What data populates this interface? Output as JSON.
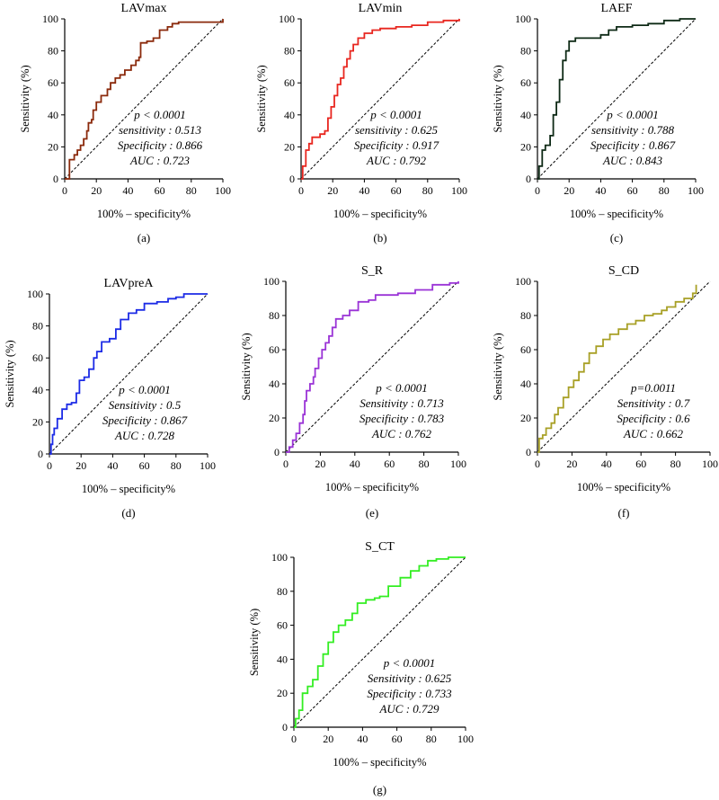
{
  "chart_data": [
    {
      "type": "line",
      "panel": "(a)",
      "title": "LAVmax",
      "xlabel": "100% – specificity%",
      "ylabel": "Sensitivity (%)",
      "xlim": [
        0,
        100
      ],
      "ylim": [
        0,
        100
      ],
      "xticks": [
        "0",
        "20",
        "40",
        "60",
        "80",
        "100"
      ],
      "yticks": [
        "0",
        "20",
        "40",
        "60",
        "80",
        "100"
      ],
      "color": "#8B2A0C",
      "annotations": [
        "p < 0.0001",
        "sensitivity : 0.513",
        "Specificity : 0.866",
        "AUC : 0.723"
      ],
      "reference_line": "dashed diagonal",
      "series": [
        {
          "points": [
            [
              0,
              0
            ],
            [
              3,
              0
            ],
            [
              3,
              12
            ],
            [
              6,
              15
            ],
            [
              8,
              18
            ],
            [
              10,
              21
            ],
            [
              12,
              25
            ],
            [
              14,
              30
            ],
            [
              15,
              35
            ],
            [
              17,
              37
            ],
            [
              18,
              43
            ],
            [
              20,
              48
            ],
            [
              23,
              52
            ],
            [
              27,
              56
            ],
            [
              29,
              60
            ],
            [
              32,
              63
            ],
            [
              35,
              65
            ],
            [
              38,
              68
            ],
            [
              42,
              71
            ],
            [
              45,
              74
            ],
            [
              47,
              76
            ],
            [
              48,
              85
            ],
            [
              52,
              86
            ],
            [
              56,
              88
            ],
            [
              60,
              93
            ],
            [
              65,
              95
            ],
            [
              68,
              97
            ],
            [
              72,
              98
            ],
            [
              100,
              100
            ]
          ]
        }
      ]
    },
    {
      "type": "line",
      "panel": "(b)",
      "title": "LAVmin",
      "xlabel": "100% – specificity%",
      "ylabel": "Sensitivity (%)",
      "xlim": [
        0,
        100
      ],
      "ylim": [
        0,
        100
      ],
      "xticks": [
        "0",
        "20",
        "40",
        "60",
        "80",
        "100"
      ],
      "yticks": [
        "0",
        "20",
        "40",
        "60",
        "80",
        "100"
      ],
      "color": "#E8261F",
      "annotations": [
        "p < 0.0001",
        "sensitivity : 0.625",
        "Specificity : 0.917",
        "AUC : 0.792"
      ],
      "reference_line": "dashed diagonal",
      "series": [
        {
          "points": [
            [
              0,
              0
            ],
            [
              1,
              8
            ],
            [
              3,
              18
            ],
            [
              5,
              22
            ],
            [
              7,
              26
            ],
            [
              12,
              28
            ],
            [
              15,
              30
            ],
            [
              17,
              38
            ],
            [
              19,
              45
            ],
            [
              21,
              52
            ],
            [
              23,
              59
            ],
            [
              25,
              63
            ],
            [
              27,
              70
            ],
            [
              29,
              75
            ],
            [
              31,
              80
            ],
            [
              33,
              84
            ],
            [
              36,
              88
            ],
            [
              40,
              91
            ],
            [
              45,
              93
            ],
            [
              50,
              94
            ],
            [
              60,
              95
            ],
            [
              70,
              96
            ],
            [
              80,
              98
            ],
            [
              90,
              99
            ],
            [
              100,
              100
            ]
          ]
        }
      ]
    },
    {
      "type": "line",
      "panel": "(c)",
      "title": "LAEF",
      "xlabel": "100% – specificity%",
      "ylabel": "Sensitivity (%)",
      "xlim": [
        0,
        100
      ],
      "ylim": [
        0,
        100
      ],
      "xticks": [
        "0",
        "20",
        "40",
        "60",
        "80",
        "100"
      ],
      "yticks": [
        "0",
        "20",
        "40",
        "60",
        "80",
        "100"
      ],
      "color": "#0E2A16",
      "annotations": [
        "p < 0.0001",
        "sensitivity : 0.788",
        "Specificity : 0.867",
        "AUC : 0.843"
      ],
      "reference_line": "dashed diagonal",
      "series": [
        {
          "points": [
            [
              0,
              0
            ],
            [
              1,
              8
            ],
            [
              3,
              18
            ],
            [
              5,
              21
            ],
            [
              8,
              27
            ],
            [
              10,
              40
            ],
            [
              12,
              48
            ],
            [
              14,
              62
            ],
            [
              16,
              74
            ],
            [
              18,
              80
            ],
            [
              20,
              86
            ],
            [
              24,
              88
            ],
            [
              30,
              88
            ],
            [
              40,
              90
            ],
            [
              45,
              93
            ],
            [
              50,
              95
            ],
            [
              60,
              96
            ],
            [
              70,
              97
            ],
            [
              80,
              99
            ],
            [
              90,
              100
            ],
            [
              100,
              100
            ]
          ]
        }
      ]
    },
    {
      "type": "line",
      "panel": "(d)",
      "title": "LAVpreA",
      "xlabel": "100% – specificity%",
      "ylabel": "Sensitivity (%)",
      "xlim": [
        0,
        100
      ],
      "ylim": [
        0,
        100
      ],
      "xticks": [
        "0",
        "20",
        "40",
        "60",
        "80",
        "100"
      ],
      "yticks": [
        "0",
        "20",
        "40",
        "60",
        "80",
        "100"
      ],
      "color": "#1C2BE6",
      "annotations": [
        "p < 0.0001",
        "Sensitivity : 0.5",
        "Specificity : 0.867",
        "AUC : 0.728"
      ],
      "reference_line": "dashed diagonal",
      "series": [
        {
          "points": [
            [
              0,
              0
            ],
            [
              1,
              6
            ],
            [
              2,
              12
            ],
            [
              3,
              16
            ],
            [
              5,
              22
            ],
            [
              8,
              28
            ],
            [
              11,
              31
            ],
            [
              14,
              32
            ],
            [
              17,
              38
            ],
            [
              19,
              46
            ],
            [
              22,
              48
            ],
            [
              25,
              53
            ],
            [
              28,
              60
            ],
            [
              30,
              64
            ],
            [
              33,
              70
            ],
            [
              38,
              72
            ],
            [
              42,
              78
            ],
            [
              45,
              84
            ],
            [
              50,
              88
            ],
            [
              55,
              90
            ],
            [
              60,
              94
            ],
            [
              68,
              95
            ],
            [
              75,
              97
            ],
            [
              80,
              98
            ],
            [
              85,
              100
            ],
            [
              100,
              100
            ]
          ]
        }
      ]
    },
    {
      "type": "line",
      "panel": "(e)",
      "title": "S_R",
      "xlabel": "100% – specificity%",
      "ylabel": "Sensitivity (%)",
      "xlim": [
        0,
        100
      ],
      "ylim": [
        0,
        100
      ],
      "xticks": [
        "0",
        "20",
        "40",
        "60",
        "80",
        "100"
      ],
      "yticks": [
        "0",
        "20",
        "40",
        "60",
        "80",
        "100"
      ],
      "color": "#9A33D6",
      "annotations": [
        "p < 0.0001",
        "Sensitivity : 0.713",
        "Specificity : 0.783",
        "AUC : 0.762"
      ],
      "reference_line": "dashed diagonal",
      "series": [
        {
          "points": [
            [
              0,
              0
            ],
            [
              2,
              3
            ],
            [
              4,
              7
            ],
            [
              6,
              11
            ],
            [
              8,
              17
            ],
            [
              10,
              22
            ],
            [
              11,
              30
            ],
            [
              12,
              36
            ],
            [
              14,
              40
            ],
            [
              16,
              44
            ],
            [
              17,
              49
            ],
            [
              19,
              55
            ],
            [
              21,
              60
            ],
            [
              23,
              64
            ],
            [
              25,
              68
            ],
            [
              27,
              73
            ],
            [
              29,
              78
            ],
            [
              33,
              80
            ],
            [
              37,
              83
            ],
            [
              42,
              88
            ],
            [
              48,
              89
            ],
            [
              52,
              92
            ],
            [
              65,
              93
            ],
            [
              75,
              95
            ],
            [
              85,
              98
            ],
            [
              95,
              99
            ],
            [
              100,
              100
            ]
          ]
        }
      ]
    },
    {
      "type": "line",
      "panel": "(f)",
      "title": "S_CD",
      "xlabel": "100% – specificity%",
      "ylabel": "Sensitivity (%)",
      "xlim": [
        0,
        100
      ],
      "ylim": [
        0,
        100
      ],
      "xticks": [
        "0",
        "20",
        "40",
        "60",
        "80",
        "100"
      ],
      "yticks": [
        "0",
        "20",
        "40",
        "60",
        "80",
        "100"
      ],
      "color": "#A8A026",
      "annotations": [
        "p=0.0011",
        "Sensitivity : 0.7",
        "Specificity : 0.6",
        "AUC : 0.662"
      ],
      "reference_line": "dashed diagonal",
      "series": [
        {
          "points": [
            [
              0,
              0
            ],
            [
              1,
              8
            ],
            [
              3,
              10
            ],
            [
              5,
              14
            ],
            [
              8,
              17
            ],
            [
              10,
              22
            ],
            [
              12,
              26
            ],
            [
              15,
              32
            ],
            [
              18,
              38
            ],
            [
              21,
              42
            ],
            [
              24,
              47
            ],
            [
              27,
              52
            ],
            [
              30,
              58
            ],
            [
              34,
              62
            ],
            [
              38,
              66
            ],
            [
              42,
              69
            ],
            [
              47,
              72
            ],
            [
              52,
              75
            ],
            [
              57,
              77
            ],
            [
              62,
              80
            ],
            [
              67,
              81
            ],
            [
              72,
              83
            ],
            [
              75,
              85
            ],
            [
              80,
              88
            ],
            [
              85,
              90
            ],
            [
              90,
              93
            ],
            [
              92,
              98
            ]
          ]
        }
      ]
    },
    {
      "type": "line",
      "panel": "(g)",
      "title": "S_CT",
      "xlabel": "100% – specificity%",
      "ylabel": "Sensitivity (%)",
      "xlim": [
        0,
        100
      ],
      "ylim": [
        0,
        100
      ],
      "xticks": [
        "0",
        "20",
        "40",
        "60",
        "80",
        "100"
      ],
      "yticks": [
        "0",
        "20",
        "40",
        "60",
        "80",
        "100"
      ],
      "color": "#33EE22",
      "annotations": [
        "p < 0.0001",
        "Sensitivity : 0.625",
        "Specificity : 0.733",
        "AUC : 0.729"
      ],
      "reference_line": "dashed diagonal",
      "series": [
        {
          "points": [
            [
              0,
              0
            ],
            [
              1,
              5
            ],
            [
              3,
              10
            ],
            [
              5,
              20
            ],
            [
              8,
              24
            ],
            [
              11,
              28
            ],
            [
              14,
              36
            ],
            [
              17,
              43
            ],
            [
              20,
              50
            ],
            [
              23,
              56
            ],
            [
              26,
              60
            ],
            [
              30,
              63
            ],
            [
              34,
              67
            ],
            [
              37,
              73
            ],
            [
              42,
              75
            ],
            [
              47,
              76
            ],
            [
              50,
              77
            ],
            [
              55,
              83
            ],
            [
              62,
              88
            ],
            [
              68,
              92
            ],
            [
              73,
              95
            ],
            [
              78,
              98
            ],
            [
              83,
              99
            ],
            [
              90,
              100
            ],
            [
              100,
              100
            ]
          ]
        }
      ]
    }
  ]
}
